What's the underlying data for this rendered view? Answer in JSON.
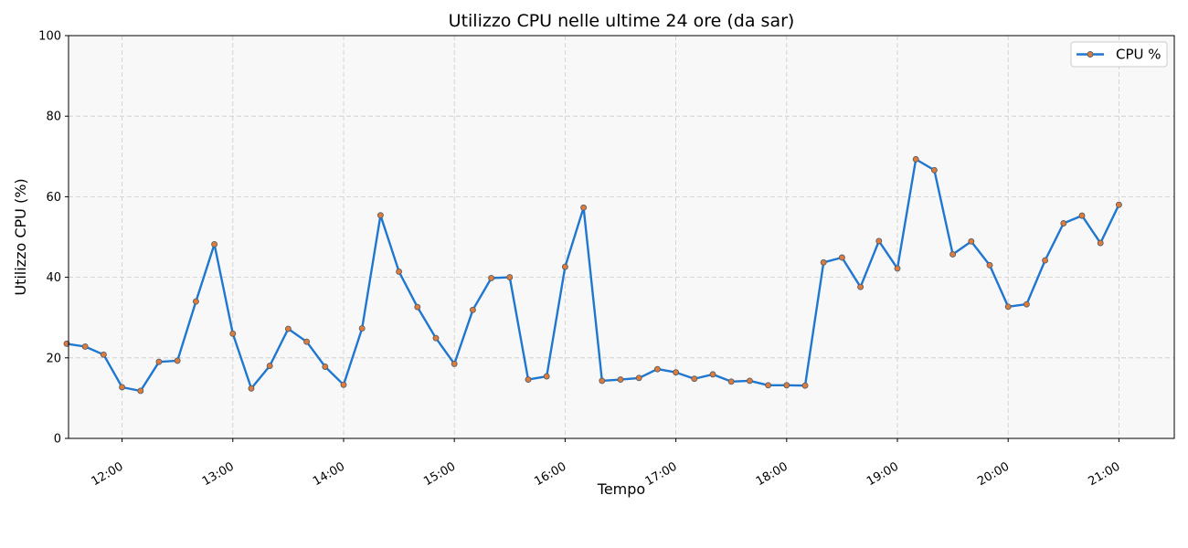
{
  "chart_data": {
    "type": "line",
    "title": "Utilizzo CPU nelle ultime 24 ore (da sar)",
    "xlabel": "Tempo",
    "ylabel": "Utilizzo CPU (%)",
    "ylim": [
      0,
      100
    ],
    "yticks": [
      "0",
      "20",
      "40",
      "60",
      "80",
      "100"
    ],
    "xlim": [
      "11:31",
      "21:30"
    ],
    "xticks": [
      {
        "time": "12:00",
        "label": "12:00"
      },
      {
        "time": "13:00",
        "label": "13:00"
      },
      {
        "time": "14:00",
        "label": "14:00"
      },
      {
        "time": "15:00",
        "label": "15:00"
      },
      {
        "time": "16:00",
        "label": "16:00"
      },
      {
        "time": "17:00",
        "label": "17:00"
      },
      {
        "time": "18:00",
        "label": "18:00"
      },
      {
        "time": "19:00",
        "label": "19:00"
      },
      {
        "time": "20:00",
        "label": "20:00"
      },
      {
        "time": "21:00",
        "label": "21:00"
      }
    ],
    "grid": true,
    "legend": "top-right",
    "series": [
      {
        "name": "CPU %",
        "color": "#1f77d0",
        "marker_color": "#e07b39",
        "x": [
          "11:30",
          "11:40",
          "11:50",
          "12:00",
          "12:10",
          "12:20",
          "12:30",
          "12:40",
          "12:50",
          "13:00",
          "13:10",
          "13:20",
          "13:30",
          "13:40",
          "13:50",
          "14:00",
          "14:10",
          "14:20",
          "14:30",
          "14:40",
          "14:50",
          "15:00",
          "15:10",
          "15:20",
          "15:30",
          "15:40",
          "15:50",
          "16:00",
          "16:10",
          "16:20",
          "16:30",
          "16:40",
          "16:50",
          "17:00",
          "17:10",
          "17:20",
          "17:30",
          "17:40",
          "17:50",
          "18:00",
          "18:10",
          "18:20",
          "18:30",
          "18:40",
          "18:50",
          "19:00",
          "19:10",
          "19:20",
          "19:30",
          "19:40",
          "19:50",
          "20:00",
          "20:10",
          "20:20",
          "20:30",
          "20:40",
          "20:50",
          "21:00"
        ],
        "values": [
          23.5,
          22.8,
          20.8,
          12.7,
          11.8,
          19.0,
          19.3,
          34.0,
          48.2,
          26.0,
          12.4,
          18.0,
          27.2,
          24.0,
          17.8,
          13.3,
          27.3,
          55.4,
          41.4,
          32.6,
          24.9,
          18.5,
          31.9,
          39.8,
          40.0,
          14.6,
          15.4,
          42.6,
          57.3,
          14.3,
          14.6,
          15.0,
          17.2,
          16.4,
          14.8,
          15.9,
          14.1,
          14.3,
          13.2,
          13.2,
          13.1,
          43.7,
          44.9,
          37.6,
          49.0,
          42.2,
          69.3,
          66.6,
          45.7,
          48.9,
          43.0,
          32.7,
          33.3,
          44.2,
          53.4,
          55.3,
          48.5,
          58.0
        ]
      }
    ]
  }
}
